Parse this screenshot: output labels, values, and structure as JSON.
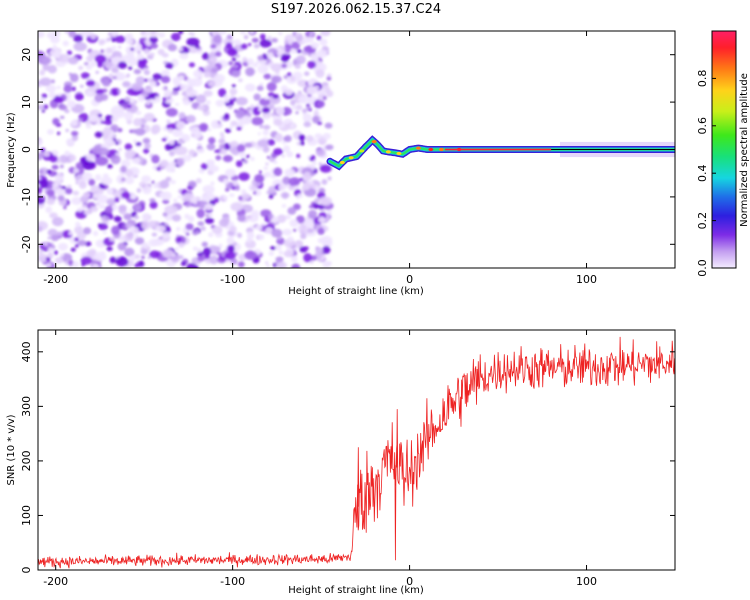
{
  "title": "S197.2026.062.15.37.C24",
  "chart_data": [
    {
      "type": "heatmap",
      "xlabel": "Height of straight line (km)",
      "ylabel": "Frequency (Hz)",
      "xlim": [
        -210,
        150
      ],
      "ylim": [
        -25,
        25
      ],
      "xticks": [
        -200,
        -100,
        0,
        100
      ],
      "yticks": [
        -20,
        -10,
        0,
        10,
        20
      ],
      "noise_region_x": [
        -210,
        -45
      ],
      "signal_center_line": {
        "x": [
          -45,
          -40,
          -36,
          -30,
          -25,
          -21,
          -18,
          -15,
          -12,
          -8,
          -4,
          0,
          5,
          10,
          20,
          40,
          60,
          80,
          100,
          120,
          150
        ],
        "freq": [
          -2.5,
          -3.5,
          -2.0,
          -1.5,
          0.5,
          2.0,
          1.0,
          -0.3,
          -0.5,
          -0.7,
          -1.0,
          0.0,
          0.3,
          0.0,
          0.0,
          0.0,
          0.0,
          0.0,
          0.0,
          0.0,
          0.0
        ]
      },
      "peak_amplitude_x": [
        20,
        80
      ],
      "colorbar": {
        "label": "Normalized spectral amplitude",
        "range": [
          0.0,
          1.0
        ],
        "ticks": [
          "0.0",
          "0.2",
          "0.4",
          "0.6",
          "0.8"
        ]
      }
    },
    {
      "type": "line",
      "xlabel": "Height of straight line (km)",
      "ylabel": "SNR (10 * v/v)",
      "xlim": [
        -210,
        150
      ],
      "ylim": [
        0,
        440
      ],
      "xticks": [
        -200,
        -100,
        0,
        100
      ],
      "yticks": [
        0,
        100,
        200,
        300,
        400
      ],
      "color": "#ee2222",
      "profile": {
        "x": [
          -210,
          -45,
          -33,
          -30,
          -25,
          -20,
          -15,
          -10,
          -5,
          0,
          10,
          20,
          30,
          40,
          50,
          60,
          80,
          100,
          120,
          150
        ],
        "snr": [
          15,
          20,
          25,
          110,
          140,
          160,
          185,
          200,
          180,
          175,
          240,
          290,
          325,
          350,
          365,
          370,
          370,
          372,
          375,
          380
        ]
      },
      "notable_points": [
        {
          "x": -29,
          "snr": 225
        },
        {
          "x": -8,
          "snr": 18
        },
        {
          "x": -7,
          "snr": 295
        }
      ]
    }
  ]
}
